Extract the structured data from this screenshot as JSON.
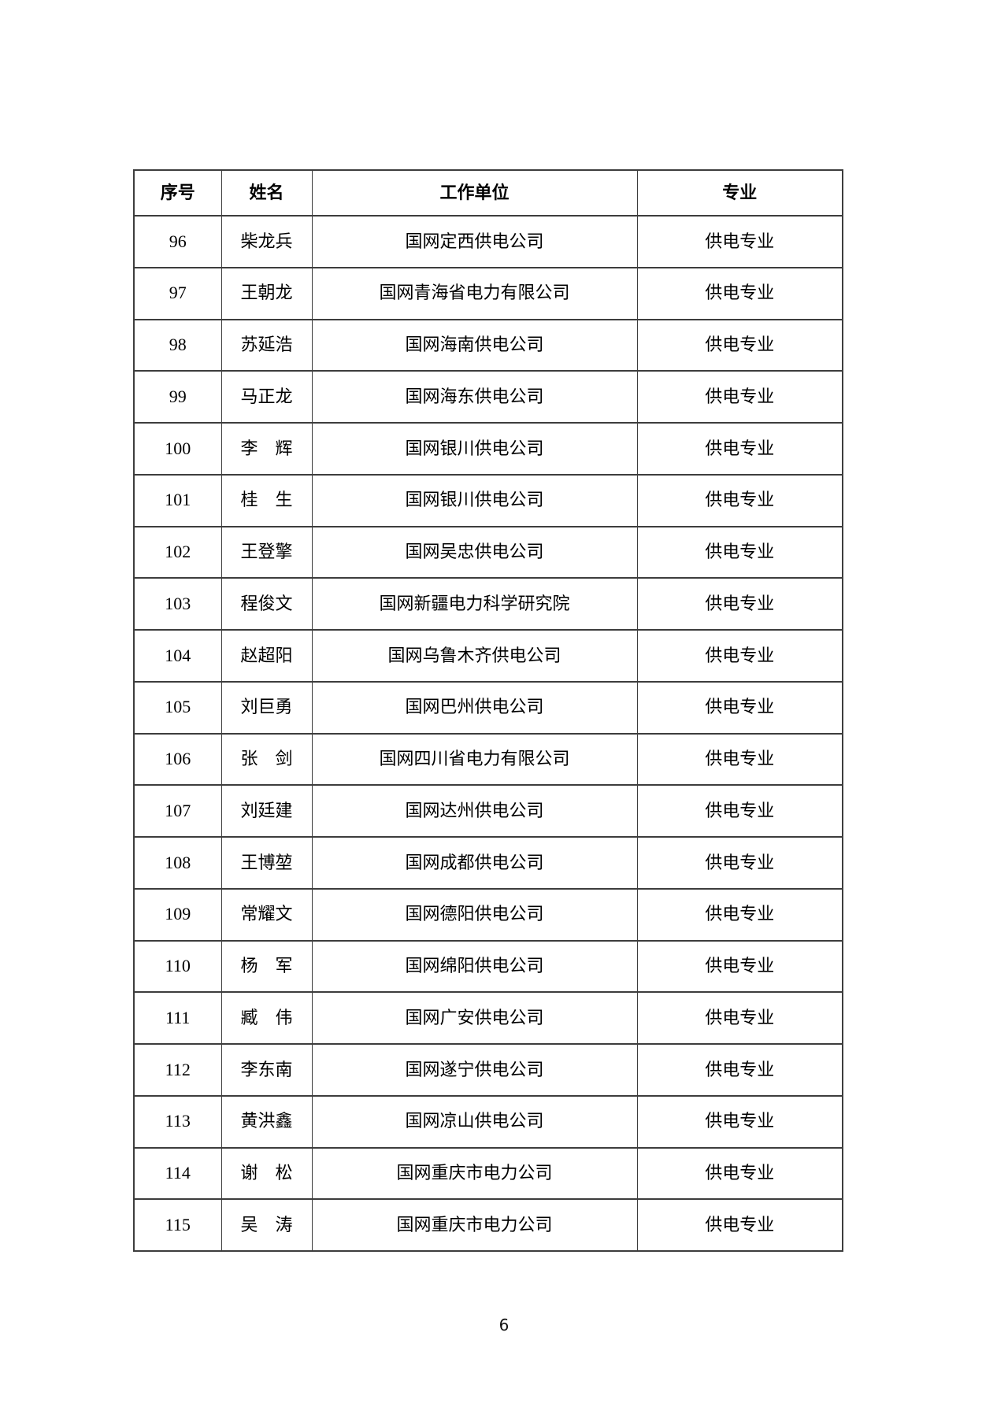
{
  "table": {
    "columns": [
      "序号",
      "姓名",
      "工作单位",
      "专业"
    ],
    "rows": [
      {
        "no": "96",
        "name": "柴龙兵",
        "unit": "国网定西供电公司",
        "major": "供电专业"
      },
      {
        "no": "97",
        "name": "王朝龙",
        "unit": "国网青海省电力有限公司",
        "major": "供电专业"
      },
      {
        "no": "98",
        "name": "苏延浩",
        "unit": "国网海南供电公司",
        "major": "供电专业"
      },
      {
        "no": "99",
        "name": "马正龙",
        "unit": "国网海东供电公司",
        "major": "供电专业"
      },
      {
        "no": "100",
        "name": "李　辉",
        "unit": "国网银川供电公司",
        "major": "供电专业"
      },
      {
        "no": "101",
        "name": "桂　生",
        "unit": "国网银川供电公司",
        "major": "供电专业"
      },
      {
        "no": "102",
        "name": "王登擎",
        "unit": "国网吴忠供电公司",
        "major": "供电专业"
      },
      {
        "no": "103",
        "name": "程俊文",
        "unit": "国网新疆电力科学研究院",
        "major": "供电专业"
      },
      {
        "no": "104",
        "name": "赵超阳",
        "unit": "国网乌鲁木齐供电公司",
        "major": "供电专业"
      },
      {
        "no": "105",
        "name": "刘巨勇",
        "unit": "国网巴州供电公司",
        "major": "供电专业"
      },
      {
        "no": "106",
        "name": "张　剑",
        "unit": "国网四川省电力有限公司",
        "major": "供电专业"
      },
      {
        "no": "107",
        "name": "刘廷建",
        "unit": "国网达州供电公司",
        "major": "供电专业"
      },
      {
        "no": "108",
        "name": "王博堃",
        "unit": "国网成都供电公司",
        "major": "供电专业"
      },
      {
        "no": "109",
        "name": "常耀文",
        "unit": "国网德阳供电公司",
        "major": "供电专业"
      },
      {
        "no": "110",
        "name": "杨　军",
        "unit": "国网绵阳供电公司",
        "major": "供电专业"
      },
      {
        "no": "111",
        "name": "臧　伟",
        "unit": "国网广安供电公司",
        "major": "供电专业"
      },
      {
        "no": "112",
        "name": "李东南",
        "unit": "国网遂宁供电公司",
        "major": "供电专业"
      },
      {
        "no": "113",
        "name": "黄洪鑫",
        "unit": "国网凉山供电公司",
        "major": "供电专业"
      },
      {
        "no": "114",
        "name": "谢　松",
        "unit": "国网重庆市电力公司",
        "major": "供电专业"
      },
      {
        "no": "115",
        "name": "吴　涛",
        "unit": "国网重庆市电力公司",
        "major": "供电专业"
      }
    ]
  },
  "footer": {
    "page_number": "6"
  }
}
